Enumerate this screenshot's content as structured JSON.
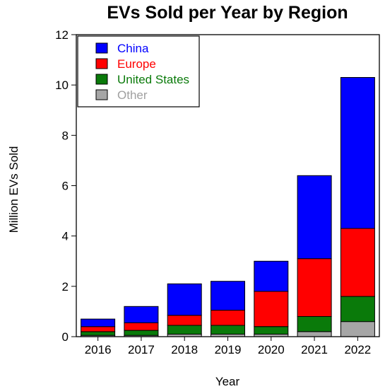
{
  "chart_data": {
    "type": "bar",
    "stacked": true,
    "title": "EVs Sold per Year by Region",
    "xlabel": "Year",
    "ylabel": "Million EVs Sold",
    "ylim": [
      0,
      12
    ],
    "yticks": [
      "0",
      "2",
      "4",
      "6",
      "8",
      "10",
      "12"
    ],
    "categories": [
      "2016",
      "2017",
      "2018",
      "2019",
      "2020",
      "2021",
      "2022"
    ],
    "series": [
      {
        "name": "Other",
        "color": "#a6a6a6",
        "values": [
          0.05,
          0.05,
          0.1,
          0.1,
          0.1,
          0.2,
          0.6
        ]
      },
      {
        "name": "United States",
        "color": "#0a7a0a",
        "values": [
          0.15,
          0.2,
          0.35,
          0.35,
          0.3,
          0.6,
          1.0
        ]
      },
      {
        "name": "Europe",
        "color": "#ff0000",
        "values": [
          0.2,
          0.3,
          0.4,
          0.6,
          1.4,
          2.3,
          2.7
        ]
      },
      {
        "name": "China",
        "color": "#0000ff",
        "values": [
          0.3,
          0.65,
          1.25,
          1.15,
          1.2,
          3.3,
          6.0
        ]
      }
    ],
    "legend": {
      "placement": "top-left",
      "order": [
        "China",
        "Europe",
        "United States",
        "Other"
      ]
    },
    "grid": false
  }
}
